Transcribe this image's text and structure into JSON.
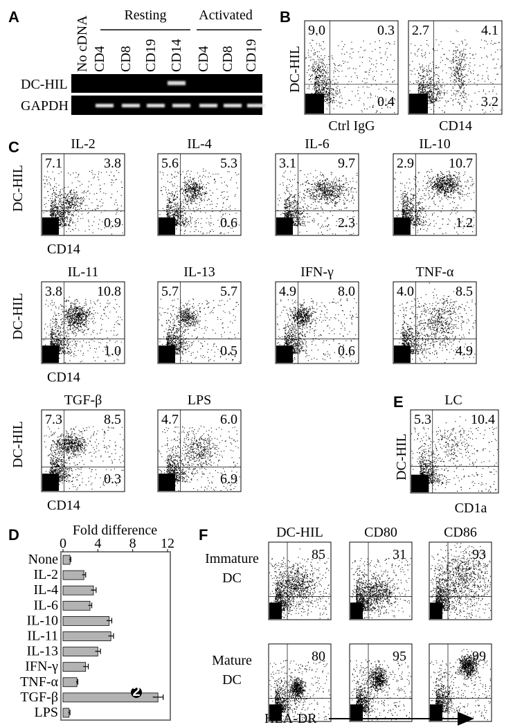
{
  "panel_a": {
    "label": "A",
    "groups": [
      "Resting",
      "Activated"
    ],
    "lanes": [
      "No cDNA",
      "CD4",
      "CD8",
      "CD19",
      "CD14",
      "CD4",
      "CD8",
      "CD19"
    ],
    "rows": [
      "DC-HIL",
      "GAPDH"
    ]
  },
  "panel_b": {
    "label": "B",
    "y_label": "DC-HIL",
    "plots": [
      {
        "x_label": "Ctrl IgG",
        "quadrants": [
          "9.0",
          "0.3",
          "0.4"
        ]
      },
      {
        "x_label": "CD14",
        "quadrants": [
          "2.7",
          "4.1",
          "3.2"
        ]
      }
    ]
  },
  "panel_c": {
    "label": "C",
    "y_label": "DC-HIL",
    "x_label": "CD14",
    "plots": [
      {
        "title": "IL-2",
        "quadrants": [
          "7.1",
          "3.8",
          "0.9"
        ]
      },
      {
        "title": "IL-4",
        "quadrants": [
          "5.6",
          "5.3",
          "0.6"
        ]
      },
      {
        "title": "IL-6",
        "quadrants": [
          "3.1",
          "9.7",
          "2.3"
        ]
      },
      {
        "title": "IL-10",
        "quadrants": [
          "2.9",
          "10.7",
          "1.2"
        ]
      },
      {
        "title": "IL-11",
        "quadrants": [
          "3.8",
          "10.8",
          "1.0"
        ]
      },
      {
        "title": "IL-13",
        "quadrants": [
          "5.7",
          "5.7",
          "0.5"
        ]
      },
      {
        "title": "IFN-γ",
        "quadrants": [
          "4.9",
          "8.0",
          "0.6"
        ]
      },
      {
        "title": "TNF-α",
        "quadrants": [
          "4.0",
          "8.5",
          "4.9"
        ]
      },
      {
        "title": "TGF-β",
        "quadrants": [
          "7.3",
          "8.5",
          "0.3"
        ]
      },
      {
        "title": "LPS",
        "quadrants": [
          "4.7",
          "6.0",
          "6.9"
        ]
      }
    ]
  },
  "panel_d": {
    "label": "D",
    "chart_data": {
      "type": "bar",
      "title": "Fold difference",
      "categories": [
        "None",
        "IL-2",
        "IL-4",
        "IL-6",
        "IL-10",
        "IL-11",
        "IL-13",
        "IFN-γ",
        "TNF-α",
        "TGF-β",
        "LPS"
      ],
      "values": [
        0.8,
        2.4,
        3.5,
        3.1,
        5.3,
        5.5,
        4.0,
        2.6,
        1.6,
        10.9,
        0.7
      ],
      "errors": [
        0.1,
        0.2,
        0.3,
        0.2,
        0.3,
        0.3,
        0.3,
        0.3,
        0.1,
        0.6,
        0.1
      ],
      "color": "#b3b3b3",
      "xlim": [
        0,
        12
      ],
      "xticks": [
        0,
        4,
        8,
        12
      ],
      "annotation": "2"
    }
  },
  "panel_e": {
    "label": "E",
    "title": "LC",
    "y_label": "DC-HIL",
    "x_label": "CD1a",
    "quadrants": [
      "5.3",
      "10.4"
    ]
  },
  "panel_f": {
    "label": "F",
    "columns": [
      "DC-HIL",
      "CD80",
      "CD86"
    ],
    "rows": [
      {
        "label_lines": [
          "Immature",
          "DC"
        ],
        "values": [
          "85",
          "31",
          "93"
        ]
      },
      {
        "label_lines": [
          "Mature",
          "DC"
        ],
        "values": [
          "80",
          "95",
          "99"
        ]
      }
    ],
    "x_label": "HLA-DR"
  }
}
